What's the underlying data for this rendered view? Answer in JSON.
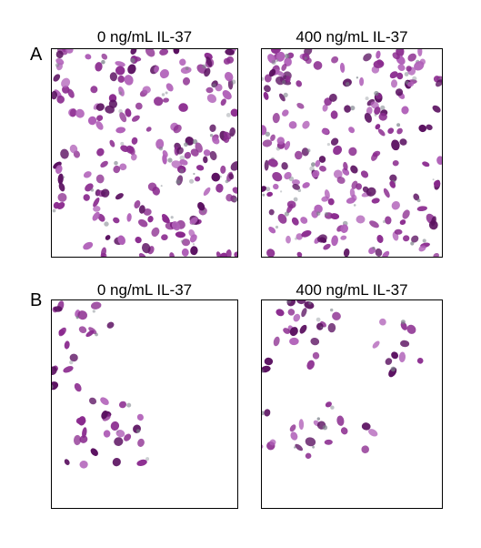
{
  "panels": [
    {
      "letter": "A",
      "images": [
        {
          "title": "0 ng/mL IL-37"
        },
        {
          "title": "400 ng/mL IL-37"
        }
      ]
    },
    {
      "letter": "B",
      "images": [
        {
          "title": "0 ng/mL IL-37"
        },
        {
          "title": "400 ng/mL IL-37"
        }
      ]
    }
  ],
  "colors": {
    "stain_dark": "#5a1060",
    "stain_mid": "#8a2a8e",
    "stain_light": "#b060b8",
    "debris": "#7a8088",
    "background": "#ffffff"
  }
}
